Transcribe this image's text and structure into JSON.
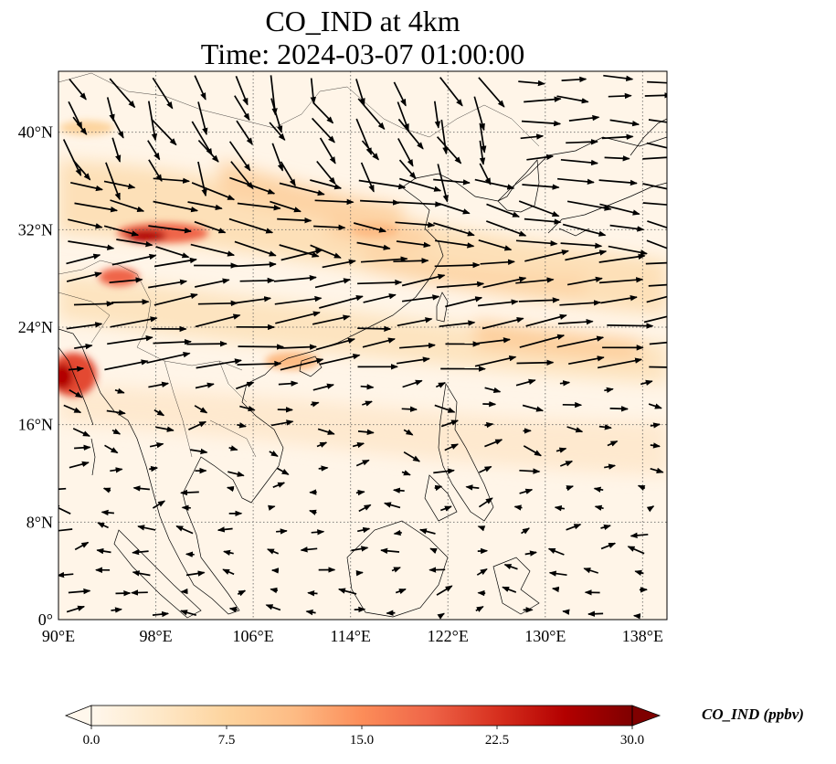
{
  "title": {
    "line1": "CO_IND at 4km",
    "line2": "Time: 2024-03-07 01:00:00"
  },
  "map": {
    "lon_range": [
      90,
      140
    ],
    "lat_range": [
      0,
      45
    ],
    "lon_ticks": [
      {
        "value": 90,
        "label": "90°E"
      },
      {
        "value": 98,
        "label": "98°E"
      },
      {
        "value": 106,
        "label": "106°E"
      },
      {
        "value": 114,
        "label": "114°E"
      },
      {
        "value": 122,
        "label": "122°E"
      },
      {
        "value": 130,
        "label": "130°E"
      },
      {
        "value": 138,
        "label": "138°E"
      }
    ],
    "lat_ticks": [
      {
        "value": 0,
        "label": "0°"
      },
      {
        "value": 8,
        "label": "8°N"
      },
      {
        "value": 16,
        "label": "16°N"
      },
      {
        "value": 24,
        "label": "24°N"
      },
      {
        "value": 32,
        "label": "32°N"
      },
      {
        "value": 40,
        "label": "40°N"
      }
    ],
    "gridlines": true
  },
  "colorbar": {
    "label": "CO_IND (ppbv)",
    "range": [
      0,
      30
    ],
    "extend": "both",
    "ticks": [
      {
        "value": 0,
        "label": "0.0"
      },
      {
        "value": 7.5,
        "label": "7.5"
      },
      {
        "value": 15,
        "label": "15.0"
      },
      {
        "value": 22.5,
        "label": "22.5"
      },
      {
        "value": 30,
        "label": "30.0"
      }
    ],
    "colormap": "OrRd",
    "stops": [
      "#fff7ec",
      "#fee8c8",
      "#fdd49e",
      "#fdbb84",
      "#fc8d59",
      "#ef6548",
      "#d7301f",
      "#b30000",
      "#7f0000"
    ]
  }
}
